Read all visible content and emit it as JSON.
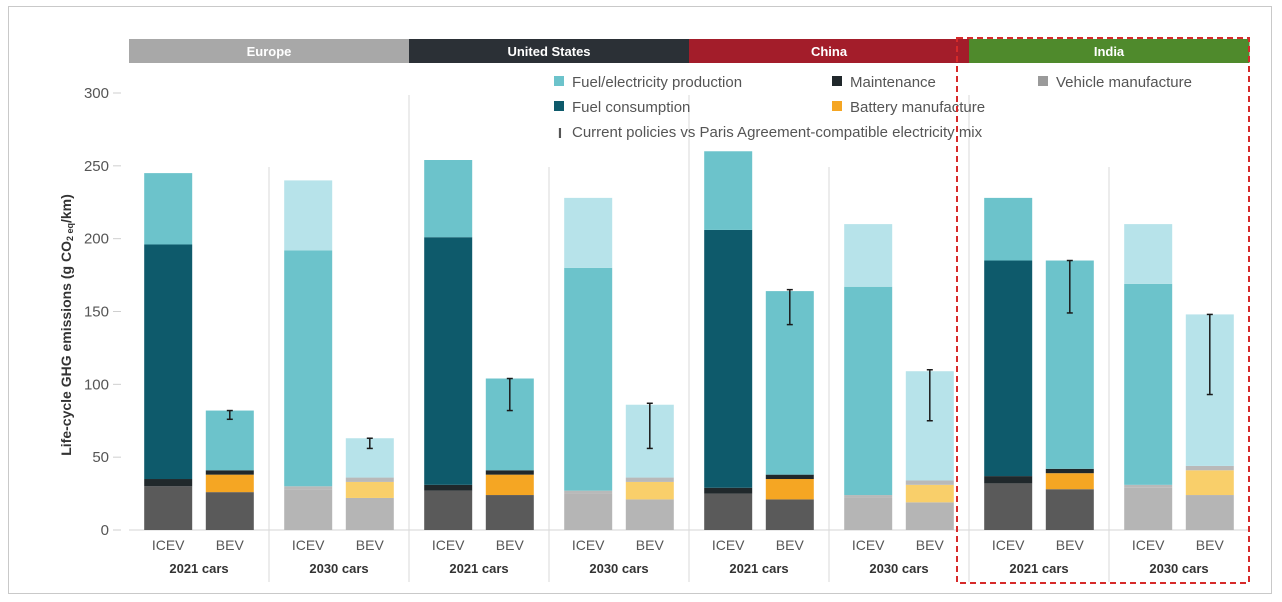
{
  "chart_data": {
    "type": "bar",
    "stacked": true,
    "ylabel": "Life-cycle GHG emissions (g CO2 eq/km)",
    "ylabel_parts": {
      "main": "Life-cycle GHG emissions (g CO",
      "sub": "2 eq",
      "end": "/km)"
    },
    "ylim": [
      0,
      300
    ],
    "yticks": [
      "0",
      "50",
      "100",
      "150",
      "200",
      "250",
      "300"
    ],
    "regions": [
      {
        "name": "Europe",
        "color": "#a8a8a8"
      },
      {
        "name": "United States",
        "color": "#2b3036"
      },
      {
        "name": "China",
        "color": "#a31d2a"
      },
      {
        "name": "India",
        "color": "#4f8a2c"
      }
    ],
    "groups": [
      "2021 cars",
      "2030 cars"
    ],
    "highlight_region": "India",
    "legend": [
      {
        "label": "Fuel/electricity production",
        "color": "#6cc3cb"
      },
      {
        "label": "Maintenance",
        "color": "#20282b"
      },
      {
        "label": "Vehicle manufacture",
        "color": "#9a9a9a"
      },
      {
        "label": "Fuel consumption",
        "color": "#0e5a6b"
      },
      {
        "label": "Battery manufacture",
        "color": "#f5a623"
      },
      {
        "label": "Current policies vs Paris Agreement-compatible electricity mix",
        "marker": "I"
      }
    ],
    "bars": [
      {
        "region": "Europe",
        "group": "2021 cars",
        "label": "ICEV",
        "faded": false,
        "vehicle": 30,
        "battery": 0,
        "maintenance": 5,
        "consumption": 161,
        "production": 49
      },
      {
        "region": "Europe",
        "group": "2021 cars",
        "label": "BEV",
        "faded": false,
        "vehicle": 26,
        "battery": 12,
        "maintenance": 3,
        "consumption": 0,
        "production": 41,
        "err": [
          76,
          82
        ]
      },
      {
        "region": "Europe",
        "group": "2030 cars",
        "label": "ICEV",
        "faded": true,
        "vehicle": 28,
        "battery": 0,
        "maintenance": 2,
        "consumption": 162,
        "production": 48
      },
      {
        "region": "Europe",
        "group": "2030 cars",
        "label": "BEV",
        "faded": true,
        "vehicle": 22,
        "battery": 11,
        "maintenance": 3,
        "consumption": 0,
        "production": 27,
        "err": [
          56,
          63
        ]
      },
      {
        "region": "United States",
        "group": "2021 cars",
        "label": "ICEV",
        "faded": false,
        "vehicle": 27,
        "battery": 0,
        "maintenance": 4,
        "consumption": 170,
        "production": 53
      },
      {
        "region": "United States",
        "group": "2021 cars",
        "label": "BEV",
        "faded": false,
        "vehicle": 24,
        "battery": 14,
        "maintenance": 3,
        "consumption": 0,
        "production": 63,
        "err": [
          82,
          104
        ]
      },
      {
        "region": "United States",
        "group": "2030 cars",
        "label": "ICEV",
        "faded": true,
        "vehicle": 25,
        "battery": 0,
        "maintenance": 2,
        "consumption": 153,
        "production": 48
      },
      {
        "region": "United States",
        "group": "2030 cars",
        "label": "BEV",
        "faded": true,
        "vehicle": 21,
        "battery": 12,
        "maintenance": 3,
        "consumption": 0,
        "production": 50,
        "err": [
          56,
          87
        ]
      },
      {
        "region": "China",
        "group": "2021 cars",
        "label": "ICEV",
        "faded": false,
        "vehicle": 25,
        "battery": 0,
        "maintenance": 4,
        "consumption": 177,
        "production": 54
      },
      {
        "region": "China",
        "group": "2021 cars",
        "label": "BEV",
        "faded": false,
        "vehicle": 21,
        "battery": 14,
        "maintenance": 3,
        "consumption": 0,
        "production": 126,
        "err": [
          141,
          165
        ]
      },
      {
        "region": "China",
        "group": "2030 cars",
        "label": "ICEV",
        "faded": true,
        "vehicle": 22,
        "battery": 0,
        "maintenance": 2,
        "consumption": 143,
        "production": 43
      },
      {
        "region": "China",
        "group": "2030 cars",
        "label": "BEV",
        "faded": true,
        "vehicle": 19,
        "battery": 12,
        "maintenance": 3,
        "consumption": 0,
        "production": 75,
        "err": [
          75,
          110
        ]
      },
      {
        "region": "India",
        "group": "2021 cars",
        "label": "ICEV",
        "faded": false,
        "vehicle": 32,
        "battery": 0,
        "maintenance": 5,
        "consumption": 148,
        "production": 43
      },
      {
        "region": "India",
        "group": "2021 cars",
        "label": "BEV",
        "faded": false,
        "vehicle": 28,
        "battery": 11,
        "maintenance": 3,
        "consumption": 0,
        "production": 143,
        "err": [
          149,
          185
        ]
      },
      {
        "region": "India",
        "group": "2030 cars",
        "label": "ICEV",
        "faded": true,
        "vehicle": 29,
        "battery": 0,
        "maintenance": 2,
        "consumption": 138,
        "production": 41
      },
      {
        "region": "India",
        "group": "2030 cars",
        "label": "BEV",
        "faded": true,
        "vehicle": 24,
        "battery": 17,
        "maintenance": 3,
        "consumption": 0,
        "production": 104,
        "err": [
          93,
          148
        ]
      }
    ]
  },
  "palette": {
    "production": "#6cc3cb",
    "production_faded": "#b7e3ea",
    "consumption": "#0e5a6b",
    "consumption_faded": "#6cc3cb",
    "maintenance": "#20282b",
    "maintenance_faded": "#b9b9b9",
    "battery": "#f5a623",
    "battery_faded": "#f9cf6a",
    "vehicle": "#5a5a5a",
    "vehicle_faded": "#b5b5b5",
    "highlight": "#d62a2a"
  }
}
